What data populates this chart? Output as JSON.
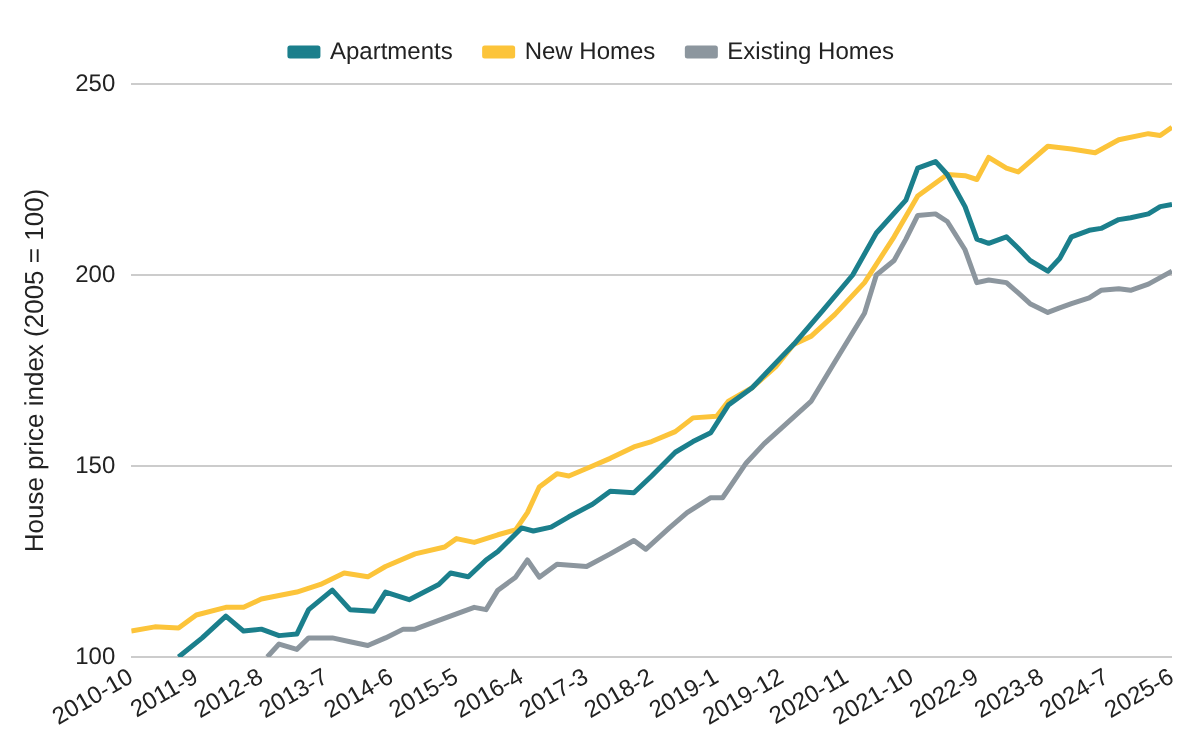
{
  "chart_data": {
    "type": "line",
    "ylabel": "House price index (2005 = 100)",
    "legend": "top",
    "grid": "y",
    "marker": "none",
    "line_style": "solid",
    "xlim": [
      "2010-10",
      "2025-06"
    ],
    "ylim": [
      100,
      250
    ],
    "yticks": [
      100,
      150,
      200,
      250
    ],
    "xticks": [
      {
        "value": "2010-10",
        "label": "2010-10"
      },
      {
        "value": "2011-09",
        "label": "2011-9"
      },
      {
        "value": "2012-08",
        "label": "2012-8"
      },
      {
        "value": "2013-07",
        "label": "2013-7"
      },
      {
        "value": "2014-06",
        "label": "2014-6"
      },
      {
        "value": "2015-05",
        "label": "2015-5"
      },
      {
        "value": "2016-04",
        "label": "2016-4"
      },
      {
        "value": "2017-03",
        "label": "2017-3"
      },
      {
        "value": "2018-02",
        "label": "2018-2"
      },
      {
        "value": "2019-01",
        "label": "2019-1"
      },
      {
        "value": "2019-12",
        "label": "2019-12"
      },
      {
        "value": "2020-11",
        "label": "2020-11"
      },
      {
        "value": "2021-10",
        "label": "2021-10"
      },
      {
        "value": "2022-09",
        "label": "2022-9"
      },
      {
        "value": "2023-08",
        "label": "2023-8"
      },
      {
        "value": "2024-07",
        "label": "2024-7"
      },
      {
        "value": "2025-06",
        "label": "2025-6"
      }
    ],
    "series": [
      {
        "name": "Apartments",
        "color": "#1b7f8c",
        "x": [
          "2011-06",
          "2011-10",
          "2012-02",
          "2012-05",
          "2012-08",
          "2012-11",
          "2013-02",
          "2013-04",
          "2013-08",
          "2013-11",
          "2014-03",
          "2014-05",
          "2014-09",
          "2015-02",
          "2015-04",
          "2015-07",
          "2015-10",
          "2015-12",
          "2016-04",
          "2016-06",
          "2016-09",
          "2016-12",
          "2017-04",
          "2017-07",
          "2017-11",
          "2018-02",
          "2018-06",
          "2018-09",
          "2018-12",
          "2019-03",
          "2019-07",
          "2019-11",
          "2020-02",
          "2020-07",
          "2020-12",
          "2021-04",
          "2021-09",
          "2021-11",
          "2022-02",
          "2022-04",
          "2022-07",
          "2022-09",
          "2022-11",
          "2023-02",
          "2023-04",
          "2023-06",
          "2023-09",
          "2023-11",
          "2024-01",
          "2024-04",
          "2024-06",
          "2024-09",
          "2024-11",
          "2025-02",
          "2025-04",
          "2025-06"
        ],
        "values": [
          100,
          105,
          110.7,
          106.8,
          107.3,
          105.6,
          106,
          112.4,
          117.5,
          112.4,
          112,
          117,
          115,
          119,
          122,
          121,
          125.4,
          127.6,
          133.8,
          133,
          134,
          136.7,
          140,
          143.4,
          143,
          147.4,
          153.6,
          156.4,
          158.7,
          166,
          170.5,
          177,
          181.8,
          190.8,
          200,
          211,
          219.6,
          228,
          229.7,
          226.3,
          217.9,
          209.4,
          208.3,
          210,
          207,
          203.8,
          201,
          204.3,
          210,
          211.7,
          212.2,
          214.5,
          215,
          216,
          217.9,
          218.5
        ]
      },
      {
        "name": "New Homes",
        "color": "#fcc43a",
        "x": [
          "2010-10",
          "2011-02",
          "2011-06",
          "2011-09",
          "2012-02",
          "2012-05",
          "2012-08",
          "2013-02",
          "2013-06",
          "2013-10",
          "2014-02",
          "2014-05",
          "2014-10",
          "2015-03",
          "2015-05",
          "2015-08",
          "2015-12",
          "2016-03",
          "2016-05",
          "2016-07",
          "2016-10",
          "2016-12",
          "2017-04",
          "2017-07",
          "2017-11",
          "2018-02",
          "2018-06",
          "2018-09",
          "2019-01",
          "2019-03",
          "2019-07",
          "2019-11",
          "2020-02",
          "2020-05",
          "2020-09",
          "2021-02",
          "2021-07",
          "2021-11",
          "2022-04",
          "2022-07",
          "2022-09",
          "2022-11",
          "2023-02",
          "2023-04",
          "2023-06",
          "2023-09",
          "2024-01",
          "2024-05",
          "2024-09",
          "2025-02",
          "2025-04",
          "2025-06"
        ],
        "values": [
          106.8,
          107.9,
          107.6,
          111,
          113,
          113,
          115.2,
          117,
          119,
          122,
          121,
          123.7,
          127,
          128.8,
          131,
          130,
          132,
          133.3,
          137.8,
          144.5,
          148,
          147.4,
          150,
          152,
          155,
          156.4,
          159,
          162.6,
          163,
          167,
          170.5,
          176,
          181.8,
          184,
          189.7,
          198,
          210,
          220.7,
          226.3,
          226,
          225,
          230.8,
          228,
          227,
          229.7,
          233.7,
          233,
          232,
          235.4,
          237,
          236.5,
          238.7
        ]
      },
      {
        "name": "Existing Homes",
        "color": "#8c969e",
        "x": [
          "2012-09",
          "2012-11",
          "2013-02",
          "2013-04",
          "2013-08",
          "2013-11",
          "2014-02",
          "2014-05",
          "2014-08",
          "2014-10",
          "2015-02",
          "2015-05",
          "2015-08",
          "2015-10",
          "2015-12",
          "2016-03",
          "2016-05",
          "2016-07",
          "2016-10",
          "2017-03",
          "2017-07",
          "2017-11",
          "2018-01",
          "2018-05",
          "2018-08",
          "2018-12",
          "2019-02",
          "2019-06",
          "2019-09",
          "2019-12",
          "2020-05",
          "2020-09",
          "2021-02",
          "2021-04",
          "2021-07",
          "2021-09",
          "2021-11",
          "2022-02",
          "2022-04",
          "2022-07",
          "2022-09",
          "2022-11",
          "2023-02",
          "2023-04",
          "2023-06",
          "2023-09",
          "2023-11",
          "2024-01",
          "2024-04",
          "2024-06",
          "2024-09",
          "2024-11",
          "2025-02",
          "2025-04",
          "2025-06"
        ],
        "values": [
          100,
          103.4,
          102,
          105,
          105,
          104,
          103,
          105,
          107.3,
          107.3,
          109.6,
          111.3,
          113,
          112.4,
          117.5,
          120.9,
          125.4,
          120.9,
          124.3,
          123.7,
          127,
          130.5,
          128.2,
          133.8,
          137.8,
          141.7,
          141.7,
          150.8,
          155.8,
          160,
          167,
          177.3,
          190,
          200,
          203.8,
          209.4,
          215.6,
          216,
          214,
          206.6,
          198,
          198.7,
          198,
          195.3,
          192.5,
          190.2,
          191.4,
          192.5,
          194,
          196,
          196.4,
          196,
          197.6,
          199.3,
          201
        ]
      }
    ]
  }
}
